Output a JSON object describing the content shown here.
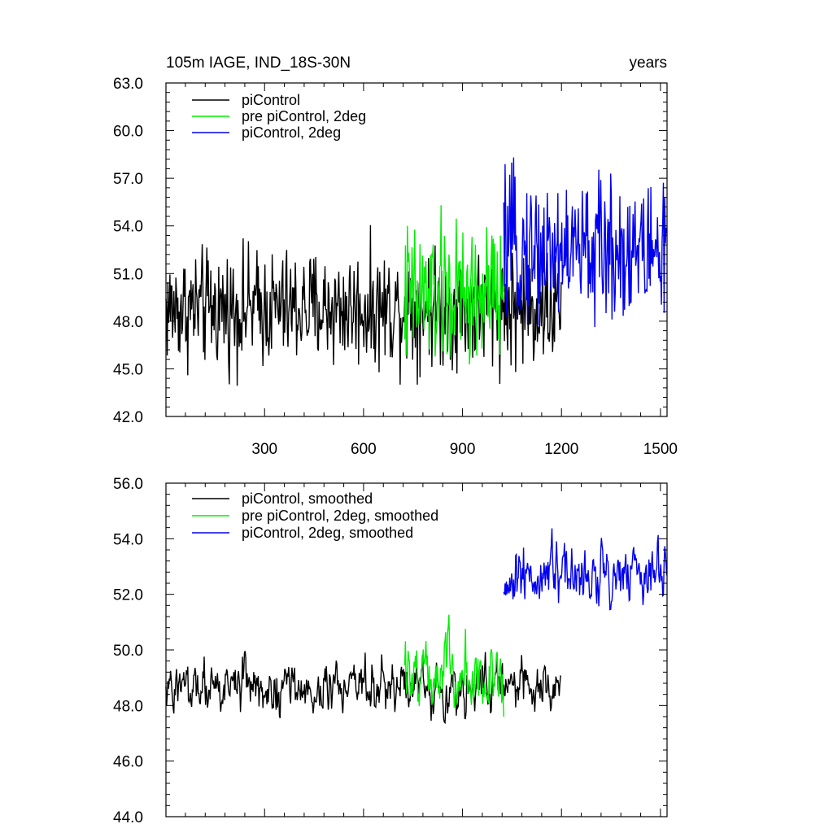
{
  "chart_data": [
    {
      "type": "line",
      "title": "105m IAGE, IND_18S-30N",
      "title_right": "years",
      "xlim": [
        1,
        1520
      ],
      "ylim": [
        42.0,
        63.0
      ],
      "yticks": [
        "42.0",
        "45.0",
        "48.0",
        "51.0",
        "54.0",
        "57.0",
        "60.0",
        "63.0"
      ],
      "xticks": [
        "300",
        "600",
        "900",
        "1200",
        "1500"
      ],
      "legend_position": "top-left",
      "grid": false,
      "series": [
        {
          "name": "piControl",
          "color": "#000000",
          "x_start": 1,
          "x_end": 1200,
          "mean": 48.8,
          "amplitude": 1.8
        },
        {
          "name": "pre piControl, 2deg",
          "color": "#00ee00",
          "x_start": 725,
          "x_end": 1025,
          "mean": 49.5,
          "amplitude": 2.3
        },
        {
          "name": "piControl, 2deg",
          "color": "#0000ee",
          "x_start": 1025,
          "x_end": 1520,
          "mean": 52.5,
          "amplitude": 2.2
        }
      ]
    },
    {
      "type": "line",
      "xlim": [
        1,
        1520
      ],
      "ylim": [
        44.0,
        56.0
      ],
      "yticks": [
        "44.0",
        "46.0",
        "48.0",
        "50.0",
        "52.0",
        "54.0",
        "56.0"
      ],
      "legend_position": "top-left",
      "grid": false,
      "series": [
        {
          "name": "piControl, smoothed",
          "color": "#000000",
          "x_start": 1,
          "x_end": 1200,
          "mean": 48.7,
          "amplitude": 0.9
        },
        {
          "name": "pre piControl, 2deg, smoothed",
          "color": "#00ee00",
          "x_start": 725,
          "x_end": 1025,
          "mean": 49.2,
          "amplitude": 1.2
        },
        {
          "name": "piControl, 2deg, smoothed",
          "color": "#0000ee",
          "x_start": 1025,
          "x_end": 1520,
          "mean": 52.6,
          "amplitude": 1.1
        }
      ]
    }
  ]
}
